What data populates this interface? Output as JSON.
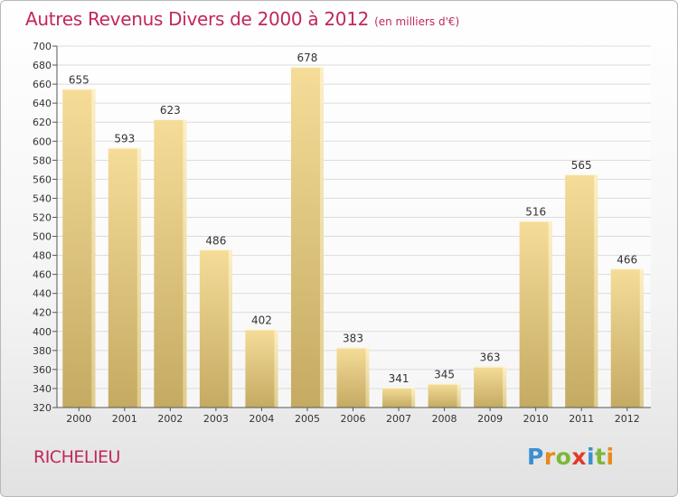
{
  "header": {
    "title": "Autres Revenus Divers de 2000 à 2012",
    "unit": "(en milliers d'€)"
  },
  "footer": {
    "place": "RICHELIEU",
    "brand": "Proxiti",
    "brand_letters": [
      {
        "char": "P",
        "color": "#3a8fd0"
      },
      {
        "char": "r",
        "color": "#e8891c"
      },
      {
        "char": "o",
        "color": "#7ab83a"
      },
      {
        "char": "x",
        "color": "#e23a2a"
      },
      {
        "char": "i",
        "color": "#3a8fd0"
      },
      {
        "char": "t",
        "color": "#7ab83a"
      },
      {
        "char": "i",
        "color": "#e8891c"
      }
    ]
  },
  "colors": {
    "accent": "#c0285a",
    "bar_light": "#f5dc98",
    "bar_dark": "#c2a860"
  },
  "chart_data": {
    "type": "bar",
    "title": "Autres Revenus Divers de 2000 à 2012",
    "subtitle": "(en milliers d'€)",
    "categories": [
      "2000",
      "2001",
      "2002",
      "2003",
      "2004",
      "2005",
      "2006",
      "2007",
      "2008",
      "2009",
      "2010",
      "2011",
      "2012"
    ],
    "values": [
      655,
      593,
      623,
      486,
      402,
      678,
      383,
      341,
      345,
      363,
      516,
      565,
      466
    ],
    "ylim": [
      320,
      700
    ],
    "yticks": [
      320,
      340,
      360,
      380,
      400,
      420,
      440,
      460,
      480,
      500,
      520,
      540,
      560,
      580,
      600,
      620,
      640,
      660,
      680,
      700
    ],
    "grid": true,
    "xlabel": "",
    "ylabel": ""
  }
}
